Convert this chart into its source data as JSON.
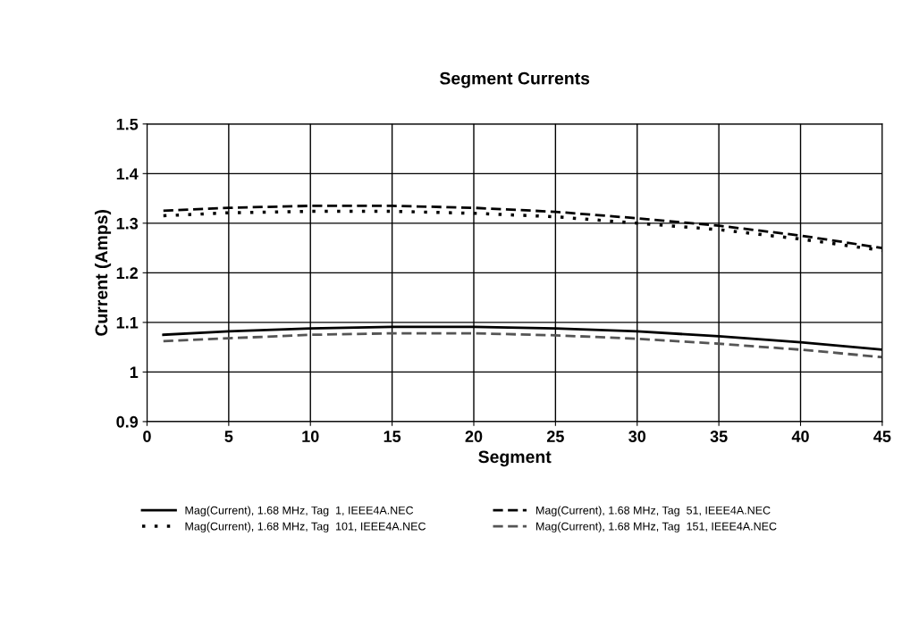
{
  "chart_data": {
    "type": "line",
    "title": "Segment Currents",
    "xlabel": "Segment",
    "ylabel": "Current (Amps)",
    "x": [
      1,
      5,
      10,
      15,
      20,
      25,
      30,
      35,
      40,
      45
    ],
    "series": [
      {
        "name": "Mag(Current), 1.68 MHz, Tag  1, IEEE4A.NEC",
        "color": "#000000",
        "line_style": "solid",
        "values": [
          1.075,
          1.082,
          1.088,
          1.091,
          1.091,
          1.088,
          1.082,
          1.072,
          1.06,
          1.045
        ]
      },
      {
        "name": "Mag(Current), 1.68 MHz, Tag  51, IEEE4A.NEC",
        "color": "#000000",
        "line_style": "dashed",
        "values": [
          1.325,
          1.331,
          1.335,
          1.335,
          1.331,
          1.323,
          1.31,
          1.295,
          1.275,
          1.25
        ]
      },
      {
        "name": "Mag(Current), 1.68 MHz, Tag  101, IEEE4A.NEC",
        "color": "#000000",
        "line_style": "dotted",
        "values": [
          1.315,
          1.321,
          1.324,
          1.324,
          1.32,
          1.313,
          1.3,
          1.287,
          1.268,
          1.245
        ]
      },
      {
        "name": "Mag(Current), 1.68 MHz, Tag  151, IEEE4A.NEC",
        "color": "#555555",
        "line_style": "dashed",
        "values": [
          1.062,
          1.068,
          1.075,
          1.078,
          1.078,
          1.074,
          1.067,
          1.057,
          1.045,
          1.03
        ]
      }
    ],
    "xlim": [
      0,
      45
    ],
    "xticks": [
      0,
      5,
      10,
      15,
      20,
      25,
      30,
      35,
      40,
      45
    ],
    "ylim": [
      0.9,
      1.5
    ],
    "yticks": [
      {
        "value": 0.9,
        "label": "0.9"
      },
      {
        "value": 1.0,
        "label": "1"
      },
      {
        "value": 1.1,
        "label": "1.1"
      },
      {
        "value": 1.2,
        "label": "1.2"
      },
      {
        "value": 1.3,
        "label": "1.3"
      },
      {
        "value": 1.4,
        "label": "1.4"
      },
      {
        "value": 1.5,
        "label": "1.5"
      }
    ],
    "grid": true,
    "legend": "bottom"
  }
}
